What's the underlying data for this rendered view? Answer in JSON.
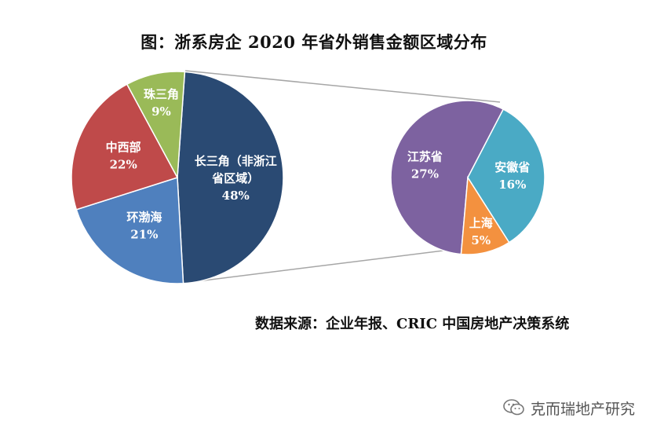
{
  "chart_title": "图：浙系房企 2020 年省外销售金额区域分布",
  "source_note": "数据来源：企业年报、CRIC 中国房地产决策系统",
  "watermark_text": "克而瑞地产研究",
  "chart_data": [
    {
      "type": "pie",
      "title": "图：浙系房企 2020 年省外销售金额区域分布",
      "slices": [
        {
          "label_lines": [
            "长三角（非浙江",
            "省区域）"
          ],
          "pct_label": "48%",
          "value": 48,
          "color": "#2a4a73"
        },
        {
          "label_lines": [
            "环渤海"
          ],
          "pct_label": "21%",
          "value": 21,
          "color": "#4f80be"
        },
        {
          "label_lines": [
            "中西部"
          ],
          "pct_label": "22%",
          "value": 22,
          "color": "#bf4a4a"
        },
        {
          "label_lines": [
            "珠三角"
          ],
          "pct_label": "9%",
          "value": 9,
          "color": "#9aba58"
        }
      ]
    },
    {
      "type": "pie",
      "title": "",
      "slices": [
        {
          "label_lines": [
            "江苏省"
          ],
          "pct_label": "27%",
          "value": 27,
          "color": "#7d62a0"
        },
        {
          "label_lines": [
            "安徽省"
          ],
          "pct_label": "16%",
          "value": 16,
          "color": "#4aaac5"
        },
        {
          "label_lines": [
            "上海"
          ],
          "pct_label": "5%",
          "value": 5,
          "color": "#f3913f"
        }
      ]
    }
  ]
}
